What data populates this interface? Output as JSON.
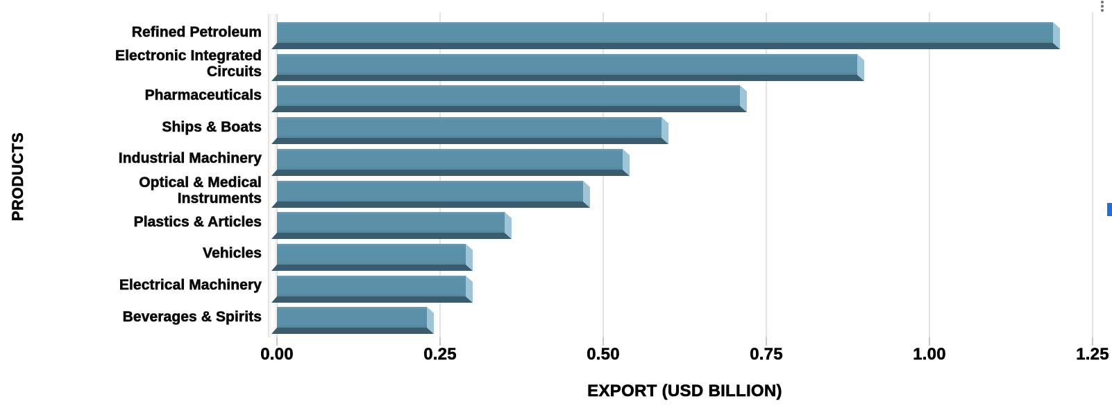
{
  "chart_data": {
    "type": "bar",
    "orientation": "horizontal",
    "title": "",
    "xlabel": "EXPORT (USD BILLION)",
    "ylabel": "PRODUCTS",
    "categories": [
      "Refined Petroleum",
      "Electronic Integrated Circuits",
      "Pharmaceuticals",
      "Ships & Boats",
      "Industrial Machinery",
      "Optical & Medical Instruments",
      "Plastics & Articles",
      "Vehicles",
      "Electrical Machinery",
      "Beverages & Spirits"
    ],
    "category_lines": [
      [
        "Refined Petroleum"
      ],
      [
        "Electronic Integrated",
        "Circuits"
      ],
      [
        "Pharmaceuticals"
      ],
      [
        "Ships & Boats"
      ],
      [
        "Industrial Machinery"
      ],
      [
        "Optical & Medical",
        "Instruments"
      ],
      [
        "Plastics & Articles"
      ],
      [
        "Vehicles"
      ],
      [
        "Electrical Machinery"
      ],
      [
        "Beverages & Spirits"
      ]
    ],
    "values": [
      1.2,
      0.9,
      0.72,
      0.6,
      0.54,
      0.48,
      0.36,
      0.3,
      0.3,
      0.24
    ],
    "xlim": [
      0,
      1.25
    ],
    "x_ticks": [
      "0.00",
      "0.25",
      "0.50",
      "0.75",
      "1.00",
      "1.25"
    ],
    "grid": true,
    "legend": "none",
    "bar_face_color": "#5b90a9",
    "bar_bevel_color": "#9fc3d7",
    "bar_shadow_color": "#3a5c6e"
  },
  "decorations": {
    "menu_icon": "kebab-menu",
    "menu_dot_color": "#757575",
    "scrollbar_color": "#1a6fe3",
    "gridline_color": "#e3e3e3",
    "wall_color": "#f2f2f2"
  }
}
